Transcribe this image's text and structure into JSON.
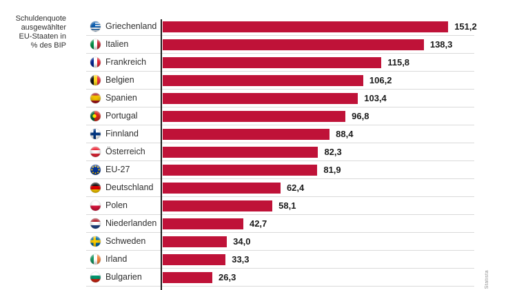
{
  "title": "Schuldenquote\nausgewählter\nEU-Staaten in\n% des BIP",
  "watermark": "Statista",
  "colors": {
    "bar": "#bf1238",
    "axis": "#1a1a1a",
    "separator": "#d9d9d9",
    "text": "#2e2e2e"
  },
  "chart_data": {
    "type": "bar",
    "orientation": "horizontal",
    "title": "Schuldenquote ausgewählter EU-Staaten in % des BIP",
    "unit": "% des BIP",
    "categories": [
      "Griechenland",
      "Italien",
      "Frankreich",
      "Belgien",
      "Spanien",
      "Portugal",
      "Finnland",
      "Österreich",
      "EU-27",
      "Deutschland",
      "Polen",
      "Niederlanden",
      "Schweden",
      "Irland",
      "Bulgarien"
    ],
    "values": [
      151.2,
      138.3,
      115.8,
      106.2,
      103.4,
      96.8,
      88.4,
      82.3,
      81.9,
      62.4,
      58.1,
      42.7,
      34.0,
      33.3,
      26.3
    ],
    "value_labels": [
      "151,2",
      "138,3",
      "115,8",
      "106,2",
      "103,4",
      "96,8",
      "88,4",
      "82,3",
      "81,9",
      "62,4",
      "58,1",
      "42,7",
      "34,0",
      "33,3",
      "26,3"
    ],
    "flag_codes": [
      "gr",
      "it",
      "fr",
      "be",
      "es",
      "pt",
      "fi",
      "at",
      "eu",
      "de",
      "pl",
      "nl",
      "se",
      "ie",
      "bg"
    ],
    "xlim": [
      0,
      165
    ],
    "grid": false,
    "legend": false
  }
}
